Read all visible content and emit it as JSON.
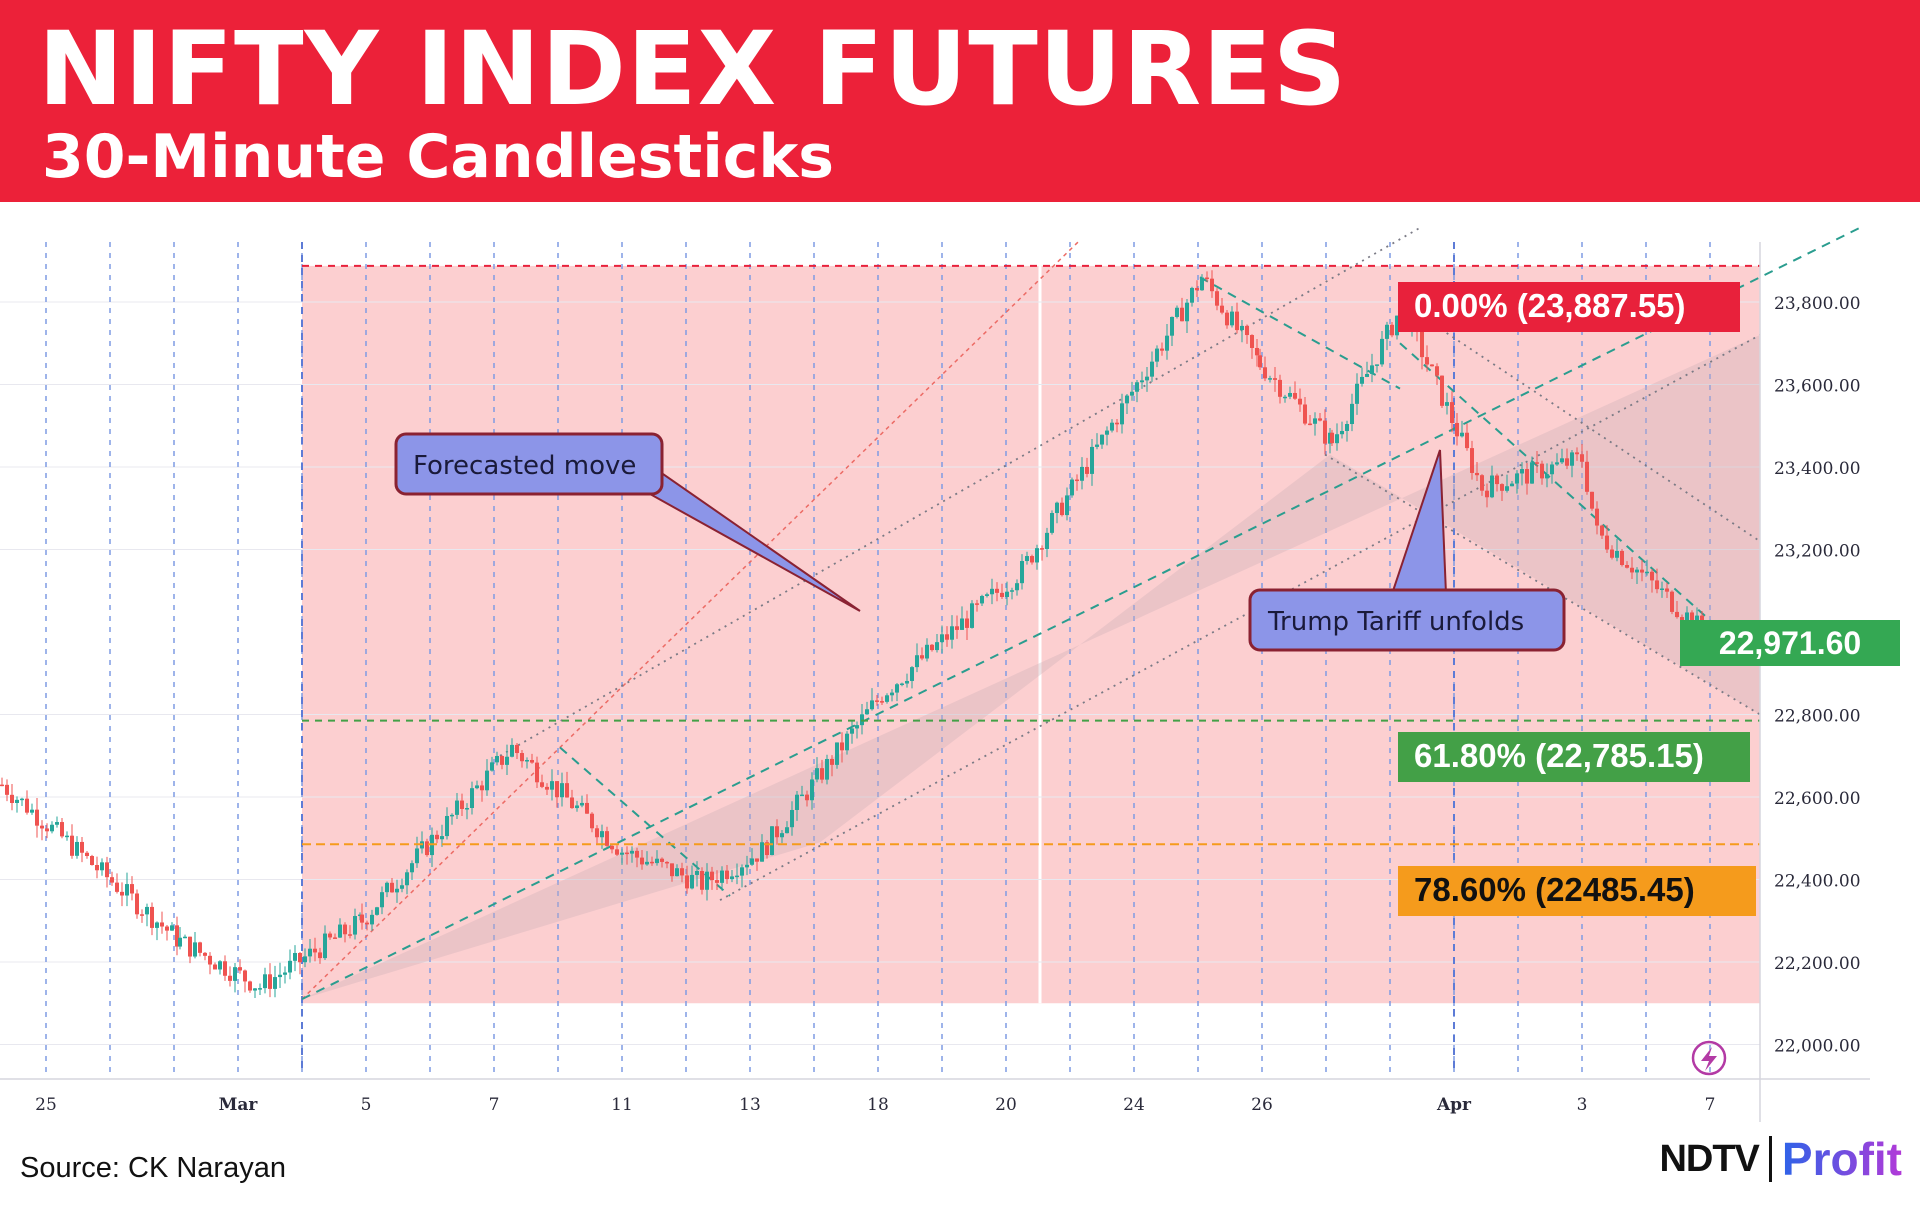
{
  "header": {
    "title": "NIFTY INDEX FUTURES",
    "subtitle": "30-Minute Candlesticks",
    "background": "#ec2139"
  },
  "footer": {
    "source": "Source: CK Narayan",
    "brand_main": "NDTV",
    "brand_sub": "Profit"
  },
  "chart_data": {
    "type": "candlestick",
    "ylim": [
      21950,
      23850
    ],
    "y_ticks": [
      "23,800.00",
      "23,600.00",
      "23,400.00",
      "23,200.00",
      "22,800.00",
      "22,600.00",
      "22,400.00",
      "22,200.00",
      "22,000.00"
    ],
    "x_ticks": [
      "25",
      "Mar",
      "5",
      "7",
      "11",
      "13",
      "18",
      "20",
      "24",
      "26",
      "Apr",
      "3",
      "7"
    ],
    "close_series": [
      {
        "x": "25",
        "y": 22630
      },
      {
        "x": "Mar",
        "y": 22250
      },
      {
        "x": "Mar",
        "y": 22140
      },
      {
        "x": "5",
        "y": 22300
      },
      {
        "x": "7",
        "y": 22720
      },
      {
        "x": "11",
        "y": 22470
      },
      {
        "x": "13",
        "y": 22390
      },
      {
        "x": "13",
        "y": 22470
      },
      {
        "x": "18",
        "y": 22850
      },
      {
        "x": "20",
        "y": 23150
      },
      {
        "x": "24",
        "y": 23700
      },
      {
        "x": "24",
        "y": 23860
      },
      {
        "x": "26",
        "y": 23650
      },
      {
        "x": "26",
        "y": 23460
      },
      {
        "x": "26",
        "y": 23790
      },
      {
        "x": "Apr",
        "y": 23350
      },
      {
        "x": "3",
        "y": 23420
      },
      {
        "x": "3",
        "y": 23240
      },
      {
        "x": "7",
        "y": 22960
      }
    ],
    "last_price": {
      "label": "22,971.60",
      "value": 22971.6,
      "color": "#34a853"
    },
    "fibonacci_levels": [
      {
        "label": "0.00% (23,887.55)",
        "value": 23887.55,
        "color": "#e8213b"
      },
      {
        "label": "61.80% (22,785.15)",
        "value": 22785.15,
        "color": "#43a047"
      },
      {
        "label": "78.60% (22485.45)",
        "value": 22485.45,
        "color": "#f59b1c"
      }
    ],
    "annotations": [
      "Forecasted move",
      "Trump Tariff unfolds"
    ]
  }
}
